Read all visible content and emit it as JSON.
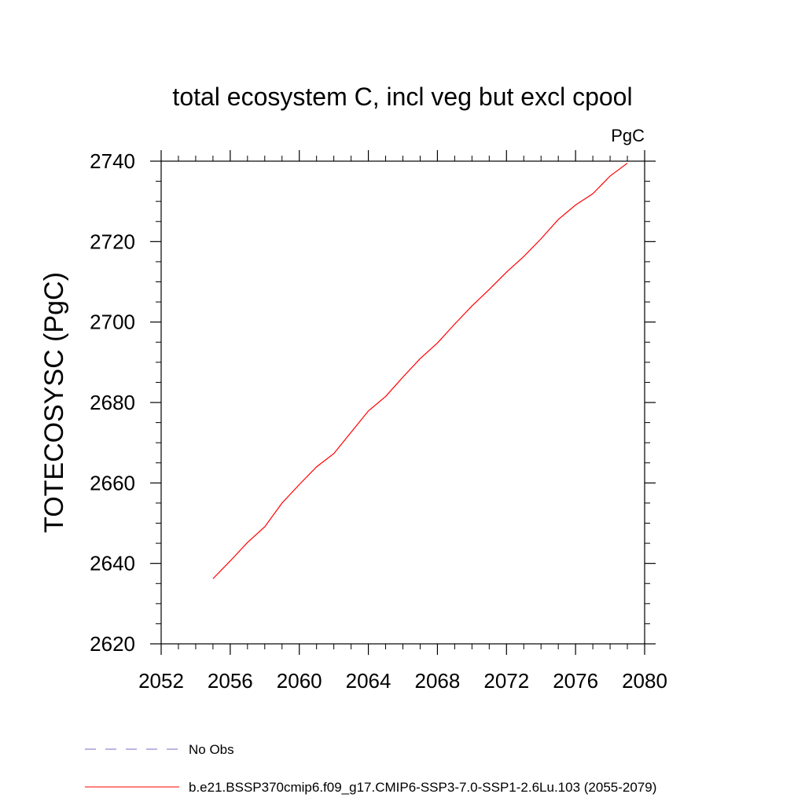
{
  "chart_data": {
    "type": "line",
    "title": "total ecosystem C, incl veg but excl cpool",
    "units": "PgC",
    "ylabel": "TOTECOSYSC  (PgC)",
    "xlabel": "",
    "xlim": [
      2052,
      2080
    ],
    "ylim": [
      2620,
      2740
    ],
    "x_ticks": [
      "2052",
      "2056",
      "2060",
      "2064",
      "2068",
      "2072",
      "2076",
      "2080"
    ],
    "y_ticks": [
      "2620",
      "2640",
      "2660",
      "2680",
      "2700",
      "2720",
      "2740"
    ],
    "grid": false,
    "series": [
      {
        "name": "b.e21.BSSP370cmip6.f09_g17.CMIP6-SSP3-7.0-SSP1-2.6Lu.103 (2055-2079)",
        "color": "#ff0000",
        "x": [
          2055,
          2056,
          2057,
          2058,
          2059,
          2060,
          2061,
          2062,
          2063,
          2064,
          2065,
          2066,
          2067,
          2068,
          2069,
          2070,
          2071,
          2072,
          2073,
          2074,
          2075,
          2076,
          2077,
          2078,
          2079
        ],
        "y": [
          2636.2,
          2640.6,
          2645.2,
          2649.1,
          2655.0,
          2659.6,
          2664.0,
          2667.3,
          2672.6,
          2677.9,
          2681.5,
          2686.3,
          2690.9,
          2694.8,
          2699.5,
          2704.0,
          2708.1,
          2712.4,
          2716.3,
          2720.7,
          2725.5,
          2729.1,
          2731.9,
          2736.3,
          2739.5
        ]
      }
    ],
    "legend": [
      {
        "label": "No Obs",
        "color": "#7b68c8",
        "style": "dashed"
      },
      {
        "label": "b.e21.BSSP370cmip6.f09_g17.CMIP6-SSP3-7.0-SSP1-2.6Lu.103 (2055-2079)",
        "color": "#ff0000",
        "style": "solid"
      }
    ],
    "legend_position": "bottom-left"
  }
}
